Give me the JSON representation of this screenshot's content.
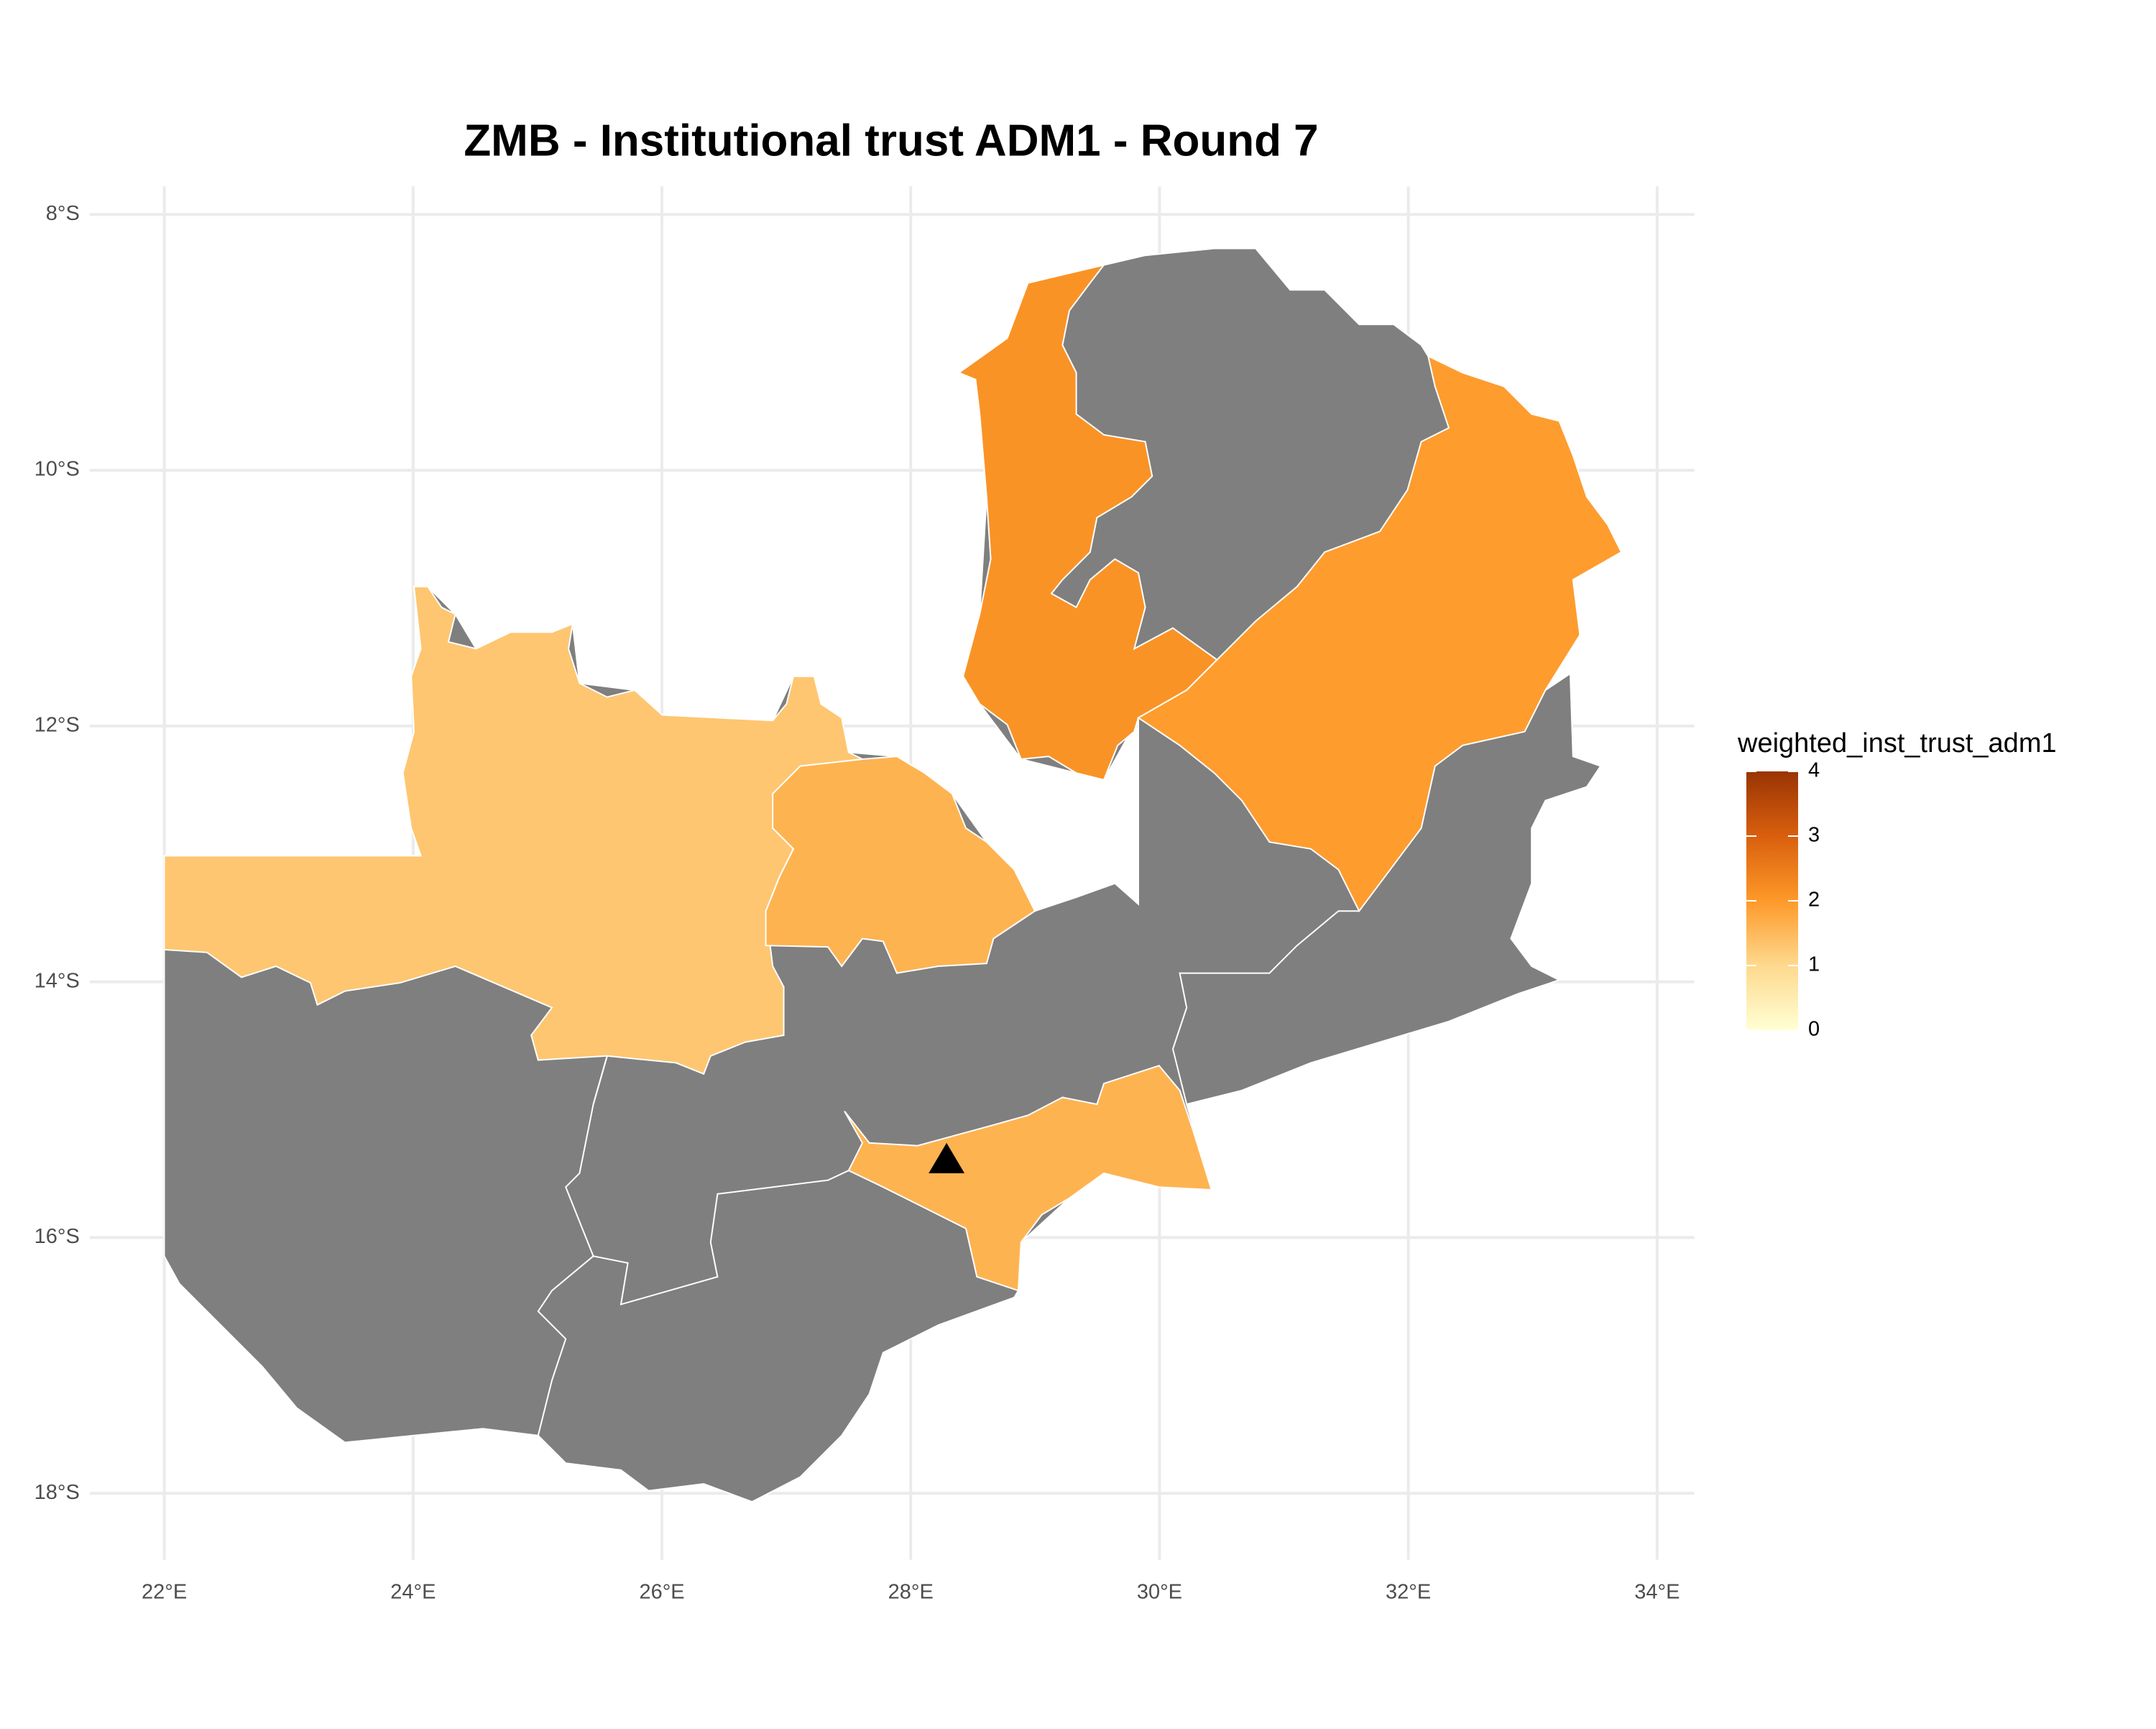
{
  "chart_data": {
    "type": "choropleth",
    "title": "ZMB - Institutional trust ADM1 - Round 7",
    "values": [
      1.3,
      1.6,
      2.1,
      1.95,
      1.6
    ],
    "na_color": "#7f7f7f",
    "xlim": [
      21.4,
      34.3
    ],
    "xticks": [
      {
        "value": 22,
        "label": "22°E"
      },
      {
        "value": 24,
        "label": "24°E"
      },
      {
        "value": 26,
        "label": "26°E"
      },
      {
        "value": 28,
        "label": "28°E"
      },
      {
        "value": 30,
        "label": "30°E"
      },
      {
        "value": 32,
        "label": "32°E"
      },
      {
        "value": 34,
        "label": "34°E"
      }
    ],
    "ylim": [
      -18.52,
      -7.78
    ],
    "yticks": [
      {
        "value": -8,
        "label": "8°S"
      },
      {
        "value": -10,
        "label": "10°S"
      },
      {
        "value": -12,
        "label": "12°S"
      },
      {
        "value": -14,
        "label": "14°S"
      },
      {
        "value": -16,
        "label": "16°S"
      },
      {
        "value": -18,
        "label": "18°S"
      }
    ],
    "grid": true,
    "legend": {
      "title": "weighted_inst_trust_adm1",
      "limits": [
        0,
        4
      ],
      "ticks": [
        0,
        1,
        2,
        3,
        4
      ],
      "colors": [
        "#ffffd4",
        "#fed98e",
        "#fe9929",
        "#d95f0e",
        "#993404"
      ]
    }
  }
}
